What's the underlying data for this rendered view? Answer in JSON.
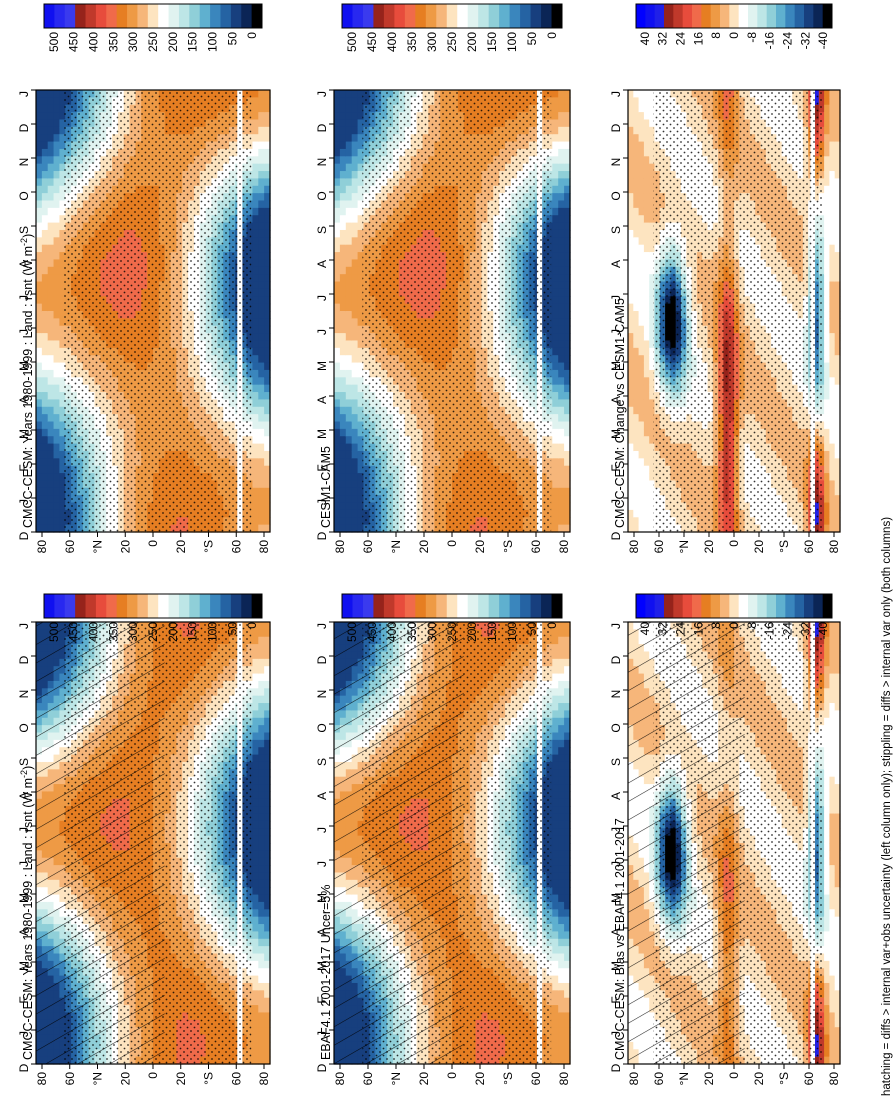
{
  "footnote": "hatching = diffs > internal var+obs uncertainty (left column only); stippling = diffs > internal var only (both columns)",
  "colors": {
    "abs_scale": [
      "#000000",
      "#08306b",
      "#1f4e96",
      "#2f6fb0",
      "#4a8fc4",
      "#6fb3d3",
      "#9fd4dc",
      "#c8ebec",
      "#ffffff",
      "#fde4c0",
      "#f6b67a",
      "#ee9a45",
      "#e67e22",
      "#d9661a",
      "#f06a4a",
      "#e74c3c",
      "#c0392b",
      "#96231b",
      "#0000ff",
      "#1010f0"
    ],
    "diff_scale": [
      "#000000",
      "#08306b",
      "#1f4e96",
      "#2f6fb0",
      "#4a8fc4",
      "#6fb3d3",
      "#9fd4dc",
      "#c8ebec",
      "#ffffff",
      "#fde4c0",
      "#f6b67a",
      "#ee9a45",
      "#e67e22",
      "#d9661a",
      "#f06a4a",
      "#e74c3c",
      "#c0392b",
      "#96231b",
      "#0000ff",
      "#1010f0"
    ]
  },
  "chart_data": [
    {
      "type": "heatmap",
      "title": "CMCC-CESM: Years 1980-1999 : Land : rsnt (W m",
      "title_sup": "-2",
      "title_close": ")",
      "x_ticks": [
        "D",
        "J",
        "F",
        "M",
        "A",
        "M",
        "J",
        "J",
        "A",
        "S",
        "O",
        "N",
        "D",
        "J"
      ],
      "y_ticks": [
        "80",
        "60",
        "°N",
        "20",
        "0",
        "20",
        "°S",
        "60",
        "80"
      ],
      "colorbar_ticks": [
        "500",
        "450",
        "400",
        "350",
        "300",
        "250",
        "200",
        "150",
        "100",
        "50",
        "0"
      ],
      "hatching": true,
      "stippling": true,
      "scale": "abs"
    },
    {
      "type": "heatmap",
      "title": "CMCC-CESM: Years 1980-1999 : Land : rsnt (W m",
      "title_sup": "-2",
      "title_close": ")",
      "x_ticks": [
        "D",
        "J",
        "F",
        "M",
        "A",
        "M",
        "J",
        "J",
        "A",
        "S",
        "O",
        "N",
        "D",
        "J"
      ],
      "y_ticks": [
        "80",
        "60",
        "°N",
        "20",
        "0",
        "20",
        "°S",
        "60",
        "80"
      ],
      "colorbar_ticks": [
        "500",
        "450",
        "400",
        "350",
        "300",
        "250",
        "200",
        "150",
        "100",
        "50",
        "0"
      ],
      "hatching": false,
      "stippling": true,
      "scale": "abs"
    },
    {
      "type": "heatmap",
      "title": "EBAF4.1 2001-2017 Uncer=5%",
      "x_ticks": [
        "D",
        "J",
        "F",
        "M",
        "A",
        "M",
        "J",
        "J",
        "A",
        "S",
        "O",
        "N",
        "D",
        "J"
      ],
      "y_ticks": [
        "80",
        "60",
        "°N",
        "20",
        "0",
        "20",
        "°S",
        "60",
        "80"
      ],
      "colorbar_ticks": [
        "500",
        "450",
        "400",
        "350",
        "300",
        "250",
        "200",
        "150",
        "100",
        "50",
        "0"
      ],
      "hatching": true,
      "stippling": true,
      "scale": "abs"
    },
    {
      "type": "heatmap",
      "title": "CESM1-CAM5",
      "x_ticks": [
        "D",
        "J",
        "F",
        "M",
        "A",
        "M",
        "J",
        "J",
        "A",
        "S",
        "O",
        "N",
        "D",
        "J"
      ],
      "y_ticks": [
        "80",
        "60",
        "°N",
        "20",
        "0",
        "20",
        "°S",
        "60",
        "80"
      ],
      "colorbar_ticks": [
        "500",
        "450",
        "400",
        "350",
        "300",
        "250",
        "200",
        "150",
        "100",
        "50",
        "0"
      ],
      "hatching": false,
      "stippling": true,
      "scale": "abs"
    },
    {
      "type": "heatmap",
      "title": "CMCC-CESM: Bias vs EBAF4.1 2001-2017",
      "x_ticks": [
        "D",
        "J",
        "F",
        "M",
        "A",
        "M",
        "J",
        "J",
        "A",
        "S",
        "O",
        "N",
        "D",
        "J"
      ],
      "y_ticks": [
        "80",
        "60",
        "°N",
        "20",
        "0",
        "20",
        "°S",
        "60",
        "80"
      ],
      "colorbar_ticks": [
        "40",
        "32",
        "24",
        "16",
        "8",
        "0",
        "-8",
        "-16",
        "-24",
        "-32",
        "-40"
      ],
      "hatching": true,
      "stippling": true,
      "scale": "diff"
    },
    {
      "type": "heatmap",
      "title": "CMCC-CESM: Change vs CESM1-CAM5",
      "x_ticks": [
        "D",
        "J",
        "F",
        "M",
        "A",
        "M",
        "J",
        "J",
        "A",
        "S",
        "O",
        "N",
        "D",
        "J"
      ],
      "y_ticks": [
        "80",
        "60",
        "°N",
        "20",
        "0",
        "20",
        "°S",
        "60",
        "80"
      ],
      "colorbar_ticks": [
        "40",
        "32",
        "24",
        "16",
        "8",
        "0",
        "-8",
        "-16",
        "-24",
        "-32",
        "-40"
      ],
      "hatching": false,
      "stippling": true,
      "scale": "diff"
    }
  ]
}
